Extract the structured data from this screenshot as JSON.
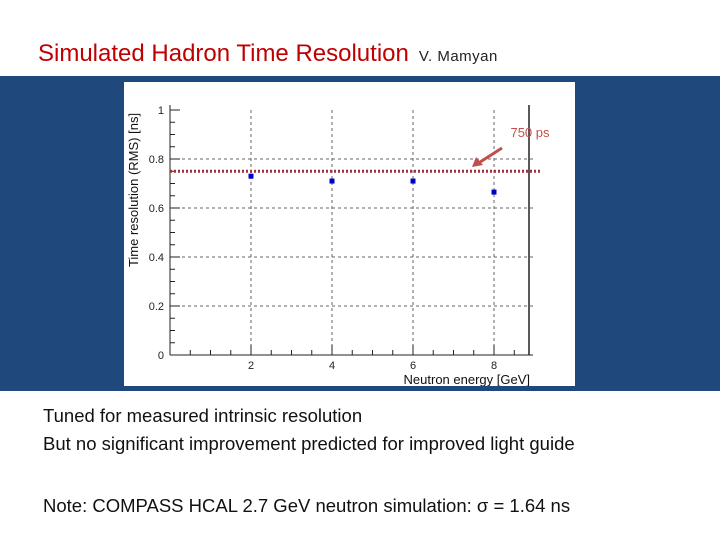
{
  "slide": {
    "title": "Simulated Hadron Time Resolution",
    "author": "V. Mamyan",
    "notes": [
      "Tuned for measured intrinsic resolution",
      "But no significant improvement predicted for improved light guide"
    ],
    "footnote": "Note: COMPASS HCAL 2.7 GeV neutron simulation: σ = 1.64 ns"
  },
  "colors": {
    "title": "#c00000",
    "band": "#1f497d",
    "markers": "#0000cc",
    "reference_line": "#a0303a",
    "arrow": "#c0504d"
  },
  "chart_data": {
    "type": "scatter",
    "xlabel": "Neutron energy [GeV]",
    "ylabel": "Time resolution (RMS) [ns]",
    "xlim": [
      0,
      10
    ],
    "ylim": [
      0,
      1
    ],
    "x_ticks": [
      2,
      4,
      6,
      8
    ],
    "y_ticks": [
      0,
      0.2,
      0.4,
      0.6,
      0.8,
      1
    ],
    "y_tick_labels": [
      "0",
      "0.2",
      "0.4",
      "0.6",
      "0.8",
      "1"
    ],
    "grid": true,
    "series": [
      {
        "x": [
          2,
          4,
          6,
          8
        ],
        "y": [
          0.73,
          0.71,
          0.71,
          0.665
        ]
      }
    ],
    "reference_line": {
      "y": 0.75,
      "style": "dotted"
    },
    "annotation": {
      "text": "750 ps",
      "arrow": true
    }
  }
}
